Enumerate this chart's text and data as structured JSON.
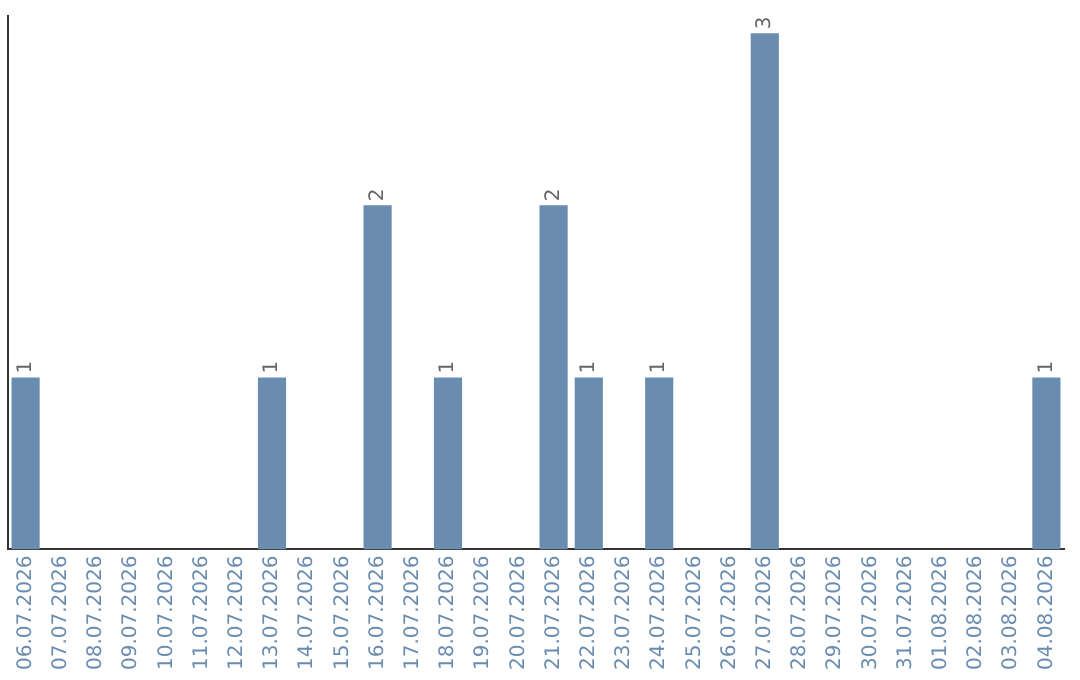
{
  "chart_data": {
    "type": "bar",
    "categories": [
      "06.07.2026",
      "07.07.2026",
      "08.07.2026",
      "09.07.2026",
      "10.07.2026",
      "11.07.2026",
      "12.07.2026",
      "13.07.2026",
      "14.07.2026",
      "15.07.2026",
      "16.07.2026",
      "17.07.2026",
      "18.07.2026",
      "19.07.2026",
      "20.07.2026",
      "21.07.2026",
      "22.07.2026",
      "23.07.2026",
      "24.07.2026",
      "25.07.2026",
      "26.07.2026",
      "27.07.2026",
      "28.07.2026",
      "29.07.2026",
      "30.07.2026",
      "31.07.2026",
      "01.08.2026",
      "02.08.2026",
      "03.08.2026",
      "04.08.2026"
    ],
    "values": [
      1,
      0,
      0,
      0,
      0,
      0,
      0,
      1,
      0,
      0,
      2,
      0,
      1,
      0,
      0,
      2,
      1,
      0,
      1,
      0,
      0,
      3,
      0,
      0,
      0,
      0,
      0,
      0,
      0,
      1
    ],
    "value_labels": [
      "1",
      null,
      null,
      null,
      null,
      null,
      null,
      "1",
      null,
      null,
      "2",
      null,
      "1",
      null,
      null,
      "2",
      "1",
      null,
      "1",
      null,
      null,
      "3",
      null,
      null,
      null,
      null,
      null,
      null,
      null,
      "1"
    ],
    "color": "#6a8caf",
    "ylim": [
      0,
      3.1
    ],
    "tick_labels": "x",
    "grid": false,
    "legend": false
  }
}
